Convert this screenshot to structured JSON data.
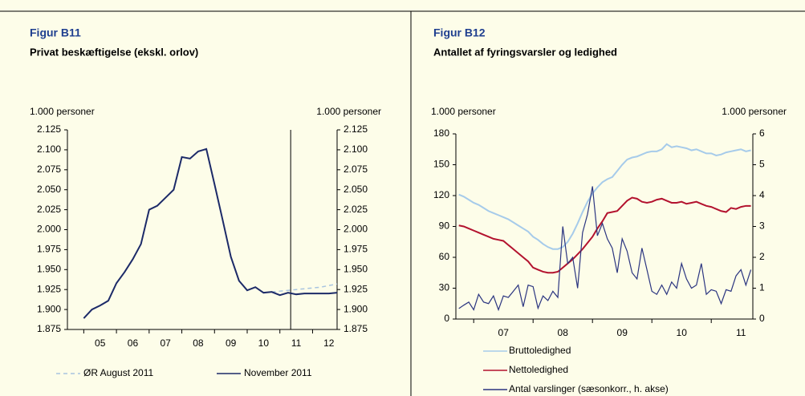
{
  "chart_data": [
    {
      "type": "line",
      "title": "Figur B11",
      "subtitle": "Privat beskæftigelse (ekskl. orlov)",
      "ylabel": "1.000 personer",
      "y2label": "1.000 personer",
      "x": [
        2005,
        2005.25,
        2005.5,
        2005.75,
        2006,
        2006.25,
        2006.5,
        2006.75,
        2007,
        2007.25,
        2007.5,
        2007.75,
        2008,
        2008.25,
        2008.5,
        2008.75,
        2009,
        2009.25,
        2009.5,
        2009.75,
        2010,
        2010.25,
        2010.5,
        2010.75,
        2011,
        2011.25,
        2011.5,
        2011.75,
        2012,
        2012.25,
        2012.5,
        2012.75
      ],
      "series": [
        {
          "name": "ØR August 2011",
          "color": "#a8c4e0",
          "dashed": true,
          "values": [
            null,
            null,
            null,
            null,
            null,
            null,
            null,
            null,
            null,
            null,
            null,
            null,
            null,
            null,
            null,
            null,
            null,
            null,
            null,
            null,
            null,
            null,
            null,
            1922,
            1923,
            1924,
            1925,
            1926,
            1927,
            1928,
            1930,
            1932
          ]
        },
        {
          "name": "November 2011",
          "color": "#1c2a68",
          "values": [
            1889,
            1900,
            1905,
            1911,
            1933,
            1947,
            1963,
            1982,
            2025,
            2030,
            2040,
            2050,
            2091,
            2089,
            2098,
            2101,
            2057,
            2012,
            1966,
            1936,
            1924,
            1928,
            1921,
            1922,
            1918,
            1921,
            1919,
            1920,
            1920,
            1920,
            1920,
            1921
          ]
        }
      ],
      "vline": 2011.33,
      "xlim": [
        2004.5,
        2012.75
      ],
      "xticks": [
        {
          "value": 2005.5,
          "label": "05"
        },
        {
          "value": 2006.5,
          "label": "06"
        },
        {
          "value": 2007.5,
          "label": "07"
        },
        {
          "value": 2008.5,
          "label": "08"
        },
        {
          "value": 2009.5,
          "label": "09"
        },
        {
          "value": 2010.5,
          "label": "10"
        },
        {
          "value": 2011.5,
          "label": "11"
        },
        {
          "value": 2012.5,
          "label": "12"
        }
      ],
      "ylim": [
        1875,
        2125
      ],
      "yticks": [
        {
          "value": 1875,
          "label": "1.875"
        },
        {
          "value": 1900,
          "label": "1.900"
        },
        {
          "value": 1925,
          "label": "1.925"
        },
        {
          "value": 1950,
          "label": "1.950"
        },
        {
          "value": 1975,
          "label": "1.975"
        },
        {
          "value": 2000,
          "label": "2.000"
        },
        {
          "value": 2025,
          "label": "2.025"
        },
        {
          "value": 2050,
          "label": "2.050"
        },
        {
          "value": 2075,
          "label": "2.075"
        },
        {
          "value": 2100,
          "label": "2.100"
        },
        {
          "value": 2125,
          "label": "2.125"
        }
      ],
      "y2lim": [
        1875,
        2125
      ],
      "y2ticks": [
        {
          "value": 1875,
          "label": "1.875"
        },
        {
          "value": 1900,
          "label": "1.900"
        },
        {
          "value": 1925,
          "label": "1.925"
        },
        {
          "value": 1950,
          "label": "1.950"
        },
        {
          "value": 1975,
          "label": "1.975"
        },
        {
          "value": 2000,
          "label": "2.000"
        },
        {
          "value": 2025,
          "label": "2.025"
        },
        {
          "value": 2050,
          "label": "2.050"
        },
        {
          "value": 2075,
          "label": "2.075"
        },
        {
          "value": 2100,
          "label": "2.100"
        },
        {
          "value": 2125,
          "label": "2.125"
        }
      ],
      "legend": "bottom"
    },
    {
      "type": "line",
      "title": "Figur B12",
      "subtitle": "Antallet af fyringsvarsler og ledighed",
      "ylabel": "1.000 personer",
      "y2label": "1.000 personer",
      "x": [
        2006.75,
        2006.833,
        2006.917,
        2007,
        2007.083,
        2007.167,
        2007.25,
        2007.333,
        2007.417,
        2007.5,
        2007.583,
        2007.667,
        2007.75,
        2007.833,
        2007.917,
        2008,
        2008.083,
        2008.167,
        2008.25,
        2008.333,
        2008.417,
        2008.5,
        2008.583,
        2008.667,
        2008.75,
        2008.833,
        2008.917,
        2009,
        2009.083,
        2009.167,
        2009.25,
        2009.333,
        2009.417,
        2009.5,
        2009.583,
        2009.667,
        2009.75,
        2009.833,
        2009.917,
        2010,
        2010.083,
        2010.167,
        2010.25,
        2010.333,
        2010.417,
        2010.5,
        2010.583,
        2010.667,
        2010.75,
        2010.833,
        2010.917,
        2011,
        2011.083,
        2011.167,
        2011.25,
        2011.333,
        2011.417,
        2011.5,
        2011.583,
        2011.667
      ],
      "series": [
        {
          "name": "Bruttoledighed",
          "color": "#a6cbea",
          "values": [
            121,
            119,
            116,
            113,
            111,
            108,
            105,
            103,
            101,
            99,
            97,
            94,
            91,
            88,
            85,
            80,
            77,
            73,
            70,
            68,
            68,
            70,
            75,
            83,
            93,
            104,
            114,
            122,
            128,
            133,
            136,
            138,
            144,
            150,
            155,
            157,
            158,
            160,
            162,
            163,
            163,
            165,
            170,
            167,
            168,
            167,
            166,
            164,
            165,
            163,
            161,
            161,
            159,
            160,
            162,
            163,
            164,
            165,
            163,
            164
          ]
        },
        {
          "name": "Nettoledighed",
          "color": "#b3122e",
          "values": [
            91,
            90,
            88,
            86,
            84,
            82,
            80,
            78,
            77,
            76,
            72,
            68,
            64,
            60,
            56,
            50,
            48,
            46,
            45,
            45,
            46,
            50,
            54,
            58,
            63,
            68,
            74,
            80,
            88,
            95,
            103,
            104,
            105,
            110,
            115,
            118,
            117,
            114,
            113,
            114,
            116,
            117,
            115,
            113,
            113,
            114,
            112,
            113,
            114,
            112,
            110,
            109,
            107,
            105,
            104,
            108,
            107,
            109,
            110,
            110
          ]
        },
        {
          "name": "Antal varslinger (sæsonkorr., h. akse)",
          "color": "#2b3580",
          "axis": "y2",
          "values": [
            0.34,
            0.45,
            0.55,
            0.3,
            0.8,
            0.55,
            0.5,
            0.75,
            0.3,
            0.75,
            0.7,
            0.9,
            1.1,
            0.4,
            1.1,
            1.05,
            0.35,
            0.75,
            0.6,
            0.9,
            0.7,
            3.0,
            1.8,
            2.0,
            1.0,
            2.8,
            3.4,
            4.3,
            2.7,
            3.1,
            2.6,
            2.3,
            1.5,
            2.6,
            2.2,
            1.5,
            1.3,
            2.3,
            1.6,
            0.9,
            0.8,
            1.1,
            0.8,
            1.2,
            1.0,
            1.8,
            1.3,
            1.0,
            1.1,
            1.8,
            0.8,
            0.95,
            0.9,
            0.5,
            0.95,
            0.9,
            1.4,
            1.6,
            1.1,
            1.6
          ]
        }
      ],
      "xlim": [
        2006.7,
        2011.7
      ],
      "xticks": [
        {
          "value": 2007.5,
          "label": "07"
        },
        {
          "value": 2008.5,
          "label": "08"
        },
        {
          "value": 2009.5,
          "label": "09"
        },
        {
          "value": 2010.5,
          "label": "10"
        },
        {
          "value": 2011.5,
          "label": "11"
        }
      ],
      "ylim": [
        0,
        180
      ],
      "yticks": [
        0,
        30,
        60,
        90,
        120,
        150,
        180
      ],
      "y2lim": [
        0,
        6
      ],
      "y2ticks": [
        0,
        1,
        2,
        3,
        4,
        5,
        6
      ],
      "legend": "below"
    }
  ]
}
